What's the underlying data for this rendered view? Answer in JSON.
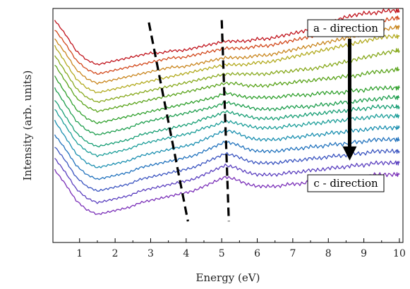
{
  "chart_data": {
    "type": "line",
    "title": "",
    "xlabel": "Energy  (eV)",
    "ylabel": "Intensity  (arb. units)",
    "xlim": [
      0.25,
      10.1
    ],
    "ylim": [
      0,
      1
    ],
    "x_ticks": [
      1,
      2,
      3,
      4,
      5,
      6,
      7,
      8,
      9,
      10
    ],
    "x_tick_labels": [
      "1",
      "2",
      "3",
      "4",
      "5",
      "6",
      "7",
      "8",
      "9",
      "10"
    ],
    "y_ticks_labeled": false,
    "legend": "none",
    "x": [
      0.3,
      0.6,
      0.9,
      1.2,
      1.5,
      1.8,
      2.1,
      2.4,
      2.7,
      3.0,
      3.3,
      3.6,
      3.9,
      4.2,
      4.5,
      4.8,
      5.1,
      5.4,
      5.7,
      6.0,
      6.3,
      6.6,
      6.9,
      7.2,
      7.5,
      7.8,
      8.1,
      8.4,
      8.7,
      9.0,
      9.3,
      9.6,
      9.9,
      10.0
    ],
    "series": [
      {
        "color": "#c0121b",
        "values": [
          0.95,
          0.89,
          0.82,
          0.78,
          0.76,
          0.77,
          0.78,
          0.79,
          0.8,
          0.81,
          0.81,
          0.82,
          0.82,
          0.83,
          0.84,
          0.85,
          0.86,
          0.86,
          0.86,
          0.87,
          0.87,
          0.88,
          0.89,
          0.9,
          0.91,
          0.93,
          0.94,
          0.96,
          0.97,
          0.98,
          0.98,
          0.99,
          0.99,
          0.99
        ]
      },
      {
        "color": "#d2471a",
        "values": [
          0.91,
          0.85,
          0.78,
          0.74,
          0.72,
          0.73,
          0.74,
          0.75,
          0.76,
          0.77,
          0.78,
          0.79,
          0.79,
          0.8,
          0.81,
          0.82,
          0.83,
          0.83,
          0.83,
          0.84,
          0.84,
          0.85,
          0.86,
          0.87,
          0.88,
          0.89,
          0.9,
          0.91,
          0.92,
          0.93,
          0.94,
          0.95,
          0.96,
          0.96
        ]
      },
      {
        "color": "#c9851d",
        "values": [
          0.87,
          0.81,
          0.74,
          0.7,
          0.68,
          0.69,
          0.7,
          0.71,
          0.72,
          0.73,
          0.74,
          0.75,
          0.75,
          0.76,
          0.77,
          0.78,
          0.79,
          0.79,
          0.79,
          0.8,
          0.8,
          0.81,
          0.82,
          0.83,
          0.84,
          0.85,
          0.86,
          0.87,
          0.88,
          0.89,
          0.9,
          0.91,
          0.92,
          0.92
        ]
      },
      {
        "color": "#b2aa1e",
        "values": [
          0.84,
          0.77,
          0.7,
          0.66,
          0.64,
          0.65,
          0.66,
          0.67,
          0.68,
          0.69,
          0.7,
          0.71,
          0.72,
          0.73,
          0.74,
          0.75,
          0.76,
          0.76,
          0.76,
          0.77,
          0.77,
          0.78,
          0.79,
          0.8,
          0.81,
          0.82,
          0.83,
          0.84,
          0.85,
          0.86,
          0.87,
          0.88,
          0.88,
          0.88
        ]
      },
      {
        "color": "#86a81b",
        "values": [
          0.8,
          0.73,
          0.66,
          0.62,
          0.6,
          0.61,
          0.62,
          0.63,
          0.64,
          0.65,
          0.66,
          0.67,
          0.68,
          0.69,
          0.7,
          0.71,
          0.72,
          0.72,
          0.72,
          0.72,
          0.72,
          0.73,
          0.73,
          0.74,
          0.74,
          0.75,
          0.76,
          0.77,
          0.78,
          0.79,
          0.8,
          0.81,
          0.82,
          0.82
        ]
      },
      {
        "color": "#59a31a",
        "values": [
          0.76,
          0.69,
          0.62,
          0.58,
          0.56,
          0.57,
          0.58,
          0.59,
          0.6,
          0.61,
          0.62,
          0.63,
          0.64,
          0.65,
          0.66,
          0.67,
          0.68,
          0.68,
          0.67,
          0.67,
          0.67,
          0.68,
          0.68,
          0.69,
          0.69,
          0.7,
          0.7,
          0.71,
          0.71,
          0.72,
          0.73,
          0.73,
          0.74,
          0.74
        ]
      },
      {
        "color": "#2fa02c",
        "values": [
          0.71,
          0.64,
          0.57,
          0.53,
          0.51,
          0.52,
          0.53,
          0.54,
          0.55,
          0.56,
          0.57,
          0.58,
          0.59,
          0.6,
          0.61,
          0.62,
          0.64,
          0.63,
          0.62,
          0.62,
          0.62,
          0.62,
          0.63,
          0.63,
          0.63,
          0.64,
          0.64,
          0.64,
          0.65,
          0.65,
          0.66,
          0.66,
          0.66,
          0.66
        ]
      },
      {
        "color": "#1e9e4e",
        "values": [
          0.66,
          0.59,
          0.52,
          0.48,
          0.46,
          0.47,
          0.48,
          0.49,
          0.51,
          0.52,
          0.53,
          0.54,
          0.55,
          0.56,
          0.57,
          0.58,
          0.6,
          0.59,
          0.58,
          0.57,
          0.57,
          0.57,
          0.58,
          0.58,
          0.58,
          0.59,
          0.59,
          0.6,
          0.6,
          0.61,
          0.61,
          0.62,
          0.62,
          0.62
        ]
      },
      {
        "color": "#179e74",
        "values": [
          0.61,
          0.54,
          0.47,
          0.43,
          0.41,
          0.42,
          0.43,
          0.44,
          0.46,
          0.47,
          0.48,
          0.49,
          0.5,
          0.51,
          0.53,
          0.54,
          0.56,
          0.55,
          0.54,
          0.53,
          0.53,
          0.53,
          0.54,
          0.54,
          0.55,
          0.55,
          0.56,
          0.56,
          0.57,
          0.57,
          0.58,
          0.58,
          0.58,
          0.58
        ]
      },
      {
        "color": "#1a9d98",
        "values": [
          0.57,
          0.5,
          0.43,
          0.39,
          0.37,
          0.38,
          0.39,
          0.4,
          0.42,
          0.43,
          0.44,
          0.45,
          0.46,
          0.47,
          0.49,
          0.5,
          0.52,
          0.51,
          0.5,
          0.49,
          0.49,
          0.49,
          0.5,
          0.5,
          0.51,
          0.51,
          0.52,
          0.52,
          0.53,
          0.53,
          0.54,
          0.54,
          0.54,
          0.54
        ]
      },
      {
        "color": "#1a8fb0",
        "values": [
          0.52,
          0.45,
          0.38,
          0.34,
          0.32,
          0.33,
          0.34,
          0.35,
          0.37,
          0.38,
          0.39,
          0.4,
          0.41,
          0.42,
          0.44,
          0.46,
          0.48,
          0.47,
          0.45,
          0.44,
          0.44,
          0.44,
          0.45,
          0.45,
          0.46,
          0.46,
          0.47,
          0.47,
          0.48,
          0.48,
          0.49,
          0.49,
          0.49,
          0.49
        ]
      },
      {
        "color": "#2172bd",
        "values": [
          0.46,
          0.4,
          0.33,
          0.29,
          0.27,
          0.28,
          0.29,
          0.3,
          0.32,
          0.33,
          0.34,
          0.35,
          0.36,
          0.37,
          0.39,
          0.41,
          0.43,
          0.42,
          0.4,
          0.39,
          0.39,
          0.39,
          0.4,
          0.4,
          0.41,
          0.41,
          0.42,
          0.42,
          0.43,
          0.43,
          0.44,
          0.44,
          0.44,
          0.44
        ]
      },
      {
        "color": "#3a54c0",
        "values": [
          0.41,
          0.35,
          0.28,
          0.24,
          0.22,
          0.23,
          0.24,
          0.25,
          0.27,
          0.28,
          0.29,
          0.3,
          0.31,
          0.32,
          0.34,
          0.36,
          0.38,
          0.37,
          0.35,
          0.34,
          0.34,
          0.34,
          0.35,
          0.35,
          0.36,
          0.36,
          0.37,
          0.37,
          0.38,
          0.38,
          0.39,
          0.39,
          0.39,
          0.39
        ]
      },
      {
        "color": "#5a3fbf",
        "values": [
          0.36,
          0.3,
          0.23,
          0.19,
          0.17,
          0.18,
          0.19,
          0.2,
          0.22,
          0.23,
          0.24,
          0.25,
          0.26,
          0.27,
          0.29,
          0.31,
          0.33,
          0.32,
          0.3,
          0.29,
          0.29,
          0.29,
          0.3,
          0.3,
          0.31,
          0.31,
          0.32,
          0.32,
          0.33,
          0.33,
          0.34,
          0.34,
          0.34,
          0.34
        ]
      },
      {
        "color": "#7a2fb8",
        "values": [
          0.31,
          0.25,
          0.18,
          0.14,
          0.12,
          0.13,
          0.14,
          0.15,
          0.17,
          0.18,
          0.19,
          0.2,
          0.21,
          0.22,
          0.24,
          0.26,
          0.28,
          0.27,
          0.25,
          0.24,
          0.24,
          0.24,
          0.25,
          0.25,
          0.26,
          0.26,
          0.27,
          0.27,
          0.28,
          0.28,
          0.29,
          0.29,
          0.29,
          0.29
        ]
      }
    ],
    "dashed_guides": [
      {
        "points": [
          [
            2.95,
            0.94
          ],
          [
            4.05,
            0.09
          ]
        ]
      },
      {
        "points": [
          [
            5.0,
            0.95
          ],
          [
            5.2,
            0.09
          ]
        ]
      }
    ],
    "arrow": {
      "from": [
        8.6,
        0.87
      ],
      "to": [
        8.6,
        0.35
      ]
    },
    "annotations": [
      {
        "text": "a - direction",
        "at": [
          8.6,
          0.93
        ]
      },
      {
        "text": "c - direction",
        "at": [
          8.6,
          0.25
        ]
      }
    ]
  }
}
